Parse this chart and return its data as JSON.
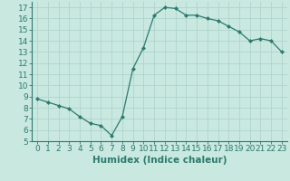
{
  "x": [
    0,
    1,
    2,
    3,
    4,
    5,
    6,
    7,
    8,
    9,
    10,
    11,
    12,
    13,
    14,
    15,
    16,
    17,
    18,
    19,
    20,
    21,
    22,
    23
  ],
  "y": [
    8.8,
    8.5,
    8.2,
    7.9,
    7.2,
    6.6,
    6.4,
    5.5,
    7.2,
    11.5,
    13.4,
    16.3,
    17.0,
    16.9,
    16.3,
    16.3,
    16.0,
    15.8,
    15.3,
    14.8,
    14.0,
    14.2,
    14.0,
    13.0
  ],
  "line_color": "#2d7a6e",
  "marker": "D",
  "marker_size": 2.0,
  "bg_color": "#c8e8e0",
  "grid_color": "#b0d4cc",
  "xlabel": "Humidex (Indice chaleur)",
  "ylim": [
    5,
    17.5
  ],
  "xlim": [
    -0.5,
    23.5
  ],
  "yticks": [
    5,
    6,
    7,
    8,
    9,
    10,
    11,
    12,
    13,
    14,
    15,
    16,
    17
  ],
  "xticks": [
    0,
    1,
    2,
    3,
    4,
    5,
    6,
    7,
    8,
    9,
    10,
    11,
    12,
    13,
    14,
    15,
    16,
    17,
    18,
    19,
    20,
    21,
    22,
    23
  ],
  "xlabel_fontsize": 7.5,
  "tick_fontsize": 6.5
}
